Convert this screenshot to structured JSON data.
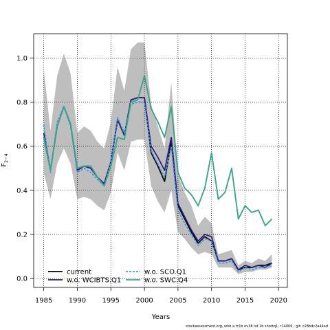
{
  "chart_data": {
    "type": "line",
    "xlabel": "Years",
    "ylabel": "F",
    "ylabel_sub": "2−4",
    "xlim": [
      1983.5,
      2021.3
    ],
    "ylim": [
      -0.04,
      1.11
    ],
    "xticks": [
      1985,
      1990,
      1995,
      2000,
      2005,
      2010,
      2015,
      2020
    ],
    "yticks": [
      0.0,
      0.2,
      0.4,
      0.6,
      0.8,
      1.0
    ],
    "ytick_labels": [
      "0.0",
      "0.2",
      "0.4",
      "0.6",
      "0.8",
      "1.0"
    ],
    "grid": true,
    "legend_position": "bottom-left",
    "colors": {
      "band": "#bebebe",
      "current": "#000000",
      "wciBTS": "#2e1a78",
      "sco": "#3399e6",
      "swc": "#3aa58c"
    },
    "x": [
      1985,
      1986,
      1987,
      1988,
      1989,
      1990,
      1991,
      1992,
      1993,
      1994,
      1995,
      1996,
      1997,
      1998,
      1999,
      2000,
      2001,
      2002,
      2003,
      2004,
      2005,
      2006,
      2007,
      2008,
      2009,
      2010,
      2011,
      2012,
      2013,
      2014,
      2015,
      2016,
      2017,
      2018,
      2019
    ],
    "band": {
      "upper": [
        0.95,
        0.67,
        0.92,
        1.02,
        0.93,
        0.66,
        0.69,
        0.67,
        0.62,
        0.59,
        0.71,
        0.96,
        0.85,
        1.04,
        1.07,
        1.07,
        0.79,
        0.69,
        0.59,
        0.89,
        0.47,
        0.39,
        0.33,
        0.24,
        0.28,
        0.25,
        0.11,
        0.12,
        0.13,
        0.06,
        0.08,
        0.07,
        0.09,
        0.08,
        0.11
      ],
      "lower": [
        0.48,
        0.36,
        0.52,
        0.59,
        0.52,
        0.36,
        0.37,
        0.36,
        0.33,
        0.31,
        0.39,
        0.57,
        0.49,
        0.62,
        0.63,
        0.63,
        0.42,
        0.35,
        0.3,
        0.4,
        0.21,
        0.18,
        0.14,
        0.11,
        0.12,
        0.11,
        0.05,
        0.05,
        0.05,
        0.02,
        0.03,
        0.03,
        0.04,
        0.04,
        0.05
      ]
    },
    "series": [
      {
        "name": "current",
        "key": "current",
        "dash": "",
        "values": [
          0.66,
          0.49,
          0.69,
          0.78,
          0.7,
          0.49,
          0.51,
          0.5,
          0.46,
          0.43,
          0.53,
          0.72,
          0.65,
          0.81,
          0.82,
          0.82,
          0.57,
          0.51,
          0.44,
          0.62,
          0.33,
          0.27,
          0.21,
          0.16,
          0.19,
          0.17,
          0.08,
          0.08,
          0.09,
          0.04,
          0.05,
          0.05,
          0.06,
          0.06,
          0.07
        ]
      },
      {
        "name": "w.o. WCIBTS.Q1",
        "key": "wciBTS",
        "dash": "",
        "values": [
          0.66,
          0.49,
          0.69,
          0.78,
          0.7,
          0.49,
          0.51,
          0.5,
          0.46,
          0.43,
          0.53,
          0.72,
          0.65,
          0.81,
          0.82,
          0.82,
          0.6,
          0.55,
          0.49,
          0.64,
          0.34,
          0.28,
          0.22,
          0.17,
          0.2,
          0.19,
          0.08,
          0.08,
          0.09,
          0.04,
          0.06,
          0.05,
          0.06,
          0.05,
          0.07
        ]
      },
      {
        "name": "w.o. SCO.Q1",
        "key": "sco",
        "dash": "3,2",
        "values": [
          0.7,
          0.48,
          0.71,
          0.78,
          0.69,
          0.48,
          0.5,
          0.48,
          0.45,
          0.42,
          0.53,
          0.73,
          0.66,
          0.79,
          0.8,
          0.8,
          0.58,
          0.52,
          0.46,
          0.6,
          0.31,
          0.25,
          0.2,
          0.15,
          0.18,
          0.17,
          0.07,
          0.07,
          0.08,
          0.03,
          0.05,
          0.04,
          0.05,
          0.05,
          0.06
        ]
      },
      {
        "name": "w.o. SWC.Q4",
        "key": "swc",
        "dash": "",
        "values": [
          0.64,
          0.49,
          0.69,
          0.78,
          0.7,
          0.5,
          0.51,
          0.51,
          0.46,
          0.42,
          0.51,
          0.64,
          0.63,
          0.8,
          0.81,
          0.92,
          0.77,
          0.71,
          0.64,
          0.78,
          0.48,
          0.41,
          0.38,
          0.33,
          0.41,
          0.57,
          0.36,
          0.39,
          0.5,
          0.27,
          0.33,
          0.3,
          0.31,
          0.24,
          0.27
        ]
      }
    ]
  },
  "footer": "stockassessment.org,  whb.a  fc1b  ov38  hd  1b  shortq1,  r14006 ,  git:  c28bdc2a44ad"
}
